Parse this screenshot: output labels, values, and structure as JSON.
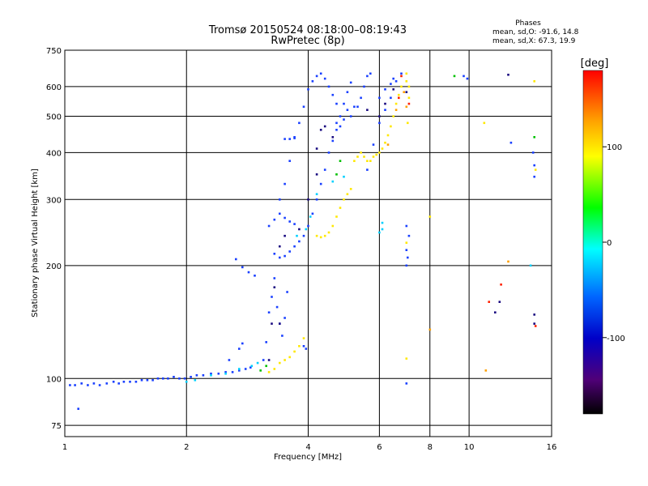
{
  "chart_data": {
    "type": "scatter",
    "title": "Tromsø 20150524 08:18:00–08:19:43",
    "subtitle": "RwPretec (8p)",
    "xlabel": "Frequency [MHz]",
    "ylabel": "Stationary phase Virtual Height [km]",
    "xscale": "log",
    "yscale": "log",
    "xlim": [
      1,
      16
    ],
    "ylim": [
      70,
      750
    ],
    "x_ticks": [
      1,
      2,
      4,
      6,
      8,
      10,
      16
    ],
    "y_ticks": [
      75,
      100,
      200,
      300,
      400,
      500,
      600,
      750
    ],
    "grid": true,
    "phases_info": {
      "title": "Phases",
      "line1": "mean, sd,O: -91.6, 14.8",
      "line2": "mean, sd,X:  67.3, 19.9"
    },
    "colorbar": {
      "label": "[deg]",
      "range": [
        -180,
        180
      ],
      "ticks": [
        100,
        0,
        -100
      ],
      "colors": [
        "#ff0000",
        "#ffa500",
        "#ffff00",
        "#00ff00",
        "#00ffff",
        "#0064ff",
        "#0000c8",
        "#500078",
        "#000000"
      ]
    },
    "series": [
      {
        "color": "#1a40ff",
        "points": [
          [
            1.03,
            96
          ],
          [
            1.06,
            96
          ],
          [
            1.1,
            97
          ],
          [
            1.14,
            96
          ],
          [
            1.18,
            97
          ],
          [
            1.22,
            96
          ],
          [
            1.27,
            97
          ],
          [
            1.32,
            98
          ],
          [
            1.36,
            97
          ],
          [
            1.4,
            98
          ],
          [
            1.45,
            98
          ],
          [
            1.5,
            98
          ],
          [
            1.55,
            99
          ],
          [
            1.6,
            99
          ],
          [
            1.65,
            99
          ],
          [
            1.7,
            100
          ],
          [
            1.75,
            100
          ],
          [
            1.8,
            100
          ],
          [
            1.86,
            101
          ],
          [
            1.92,
            100
          ],
          [
            1.98,
            100
          ],
          [
            2.05,
            101
          ],
          [
            2.12,
            102
          ],
          [
            2.2,
            102
          ],
          [
            2.3,
            103
          ],
          [
            2.4,
            103
          ],
          [
            2.5,
            104
          ],
          [
            2.6,
            104
          ],
          [
            2.7,
            105
          ],
          [
            2.8,
            106
          ],
          [
            2.88,
            107
          ],
          [
            1.08,
            83
          ],
          [
            2.55,
            112
          ],
          [
            2.7,
            120
          ],
          [
            2.75,
            124
          ],
          [
            3.1,
            112
          ],
          [
            3.15,
            125
          ],
          [
            3.2,
            150
          ],
          [
            3.25,
            165
          ],
          [
            3.3,
            185
          ],
          [
            3.35,
            155
          ],
          [
            3.4,
            140
          ],
          [
            3.45,
            130
          ],
          [
            3.5,
            145
          ],
          [
            3.55,
            170
          ],
          [
            3.9,
            122
          ],
          [
            3.95,
            120
          ],
          [
            2.65,
            208
          ],
          [
            2.75,
            198
          ],
          [
            2.85,
            192
          ],
          [
            2.95,
            188
          ],
          [
            3.3,
            215
          ],
          [
            3.4,
            210
          ],
          [
            3.5,
            212
          ],
          [
            3.6,
            218
          ],
          [
            3.7,
            225
          ],
          [
            3.8,
            232
          ],
          [
            3.9,
            240
          ],
          [
            4.0,
            255
          ],
          [
            4.1,
            275
          ],
          [
            4.2,
            300
          ],
          [
            4.3,
            330
          ],
          [
            4.4,
            360
          ],
          [
            4.5,
            400
          ],
          [
            4.6,
            430
          ],
          [
            4.7,
            460
          ],
          [
            4.8,
            500
          ],
          [
            4.9,
            540
          ],
          [
            5.0,
            580
          ],
          [
            5.1,
            615
          ],
          [
            3.2,
            255
          ],
          [
            3.3,
            265
          ],
          [
            3.4,
            275
          ],
          [
            3.5,
            268
          ],
          [
            3.6,
            262
          ],
          [
            3.7,
            258
          ],
          [
            3.4,
            300
          ],
          [
            3.5,
            330
          ],
          [
            3.6,
            380
          ],
          [
            3.7,
            440
          ],
          [
            3.8,
            480
          ],
          [
            3.9,
            530
          ],
          [
            4.0,
            590
          ],
          [
            4.1,
            620
          ],
          [
            4.2,
            640
          ],
          [
            4.3,
            650
          ],
          [
            4.4,
            630
          ],
          [
            4.5,
            600
          ],
          [
            4.6,
            570
          ],
          [
            4.7,
            540
          ],
          [
            3.5,
            435
          ],
          [
            3.6,
            435
          ],
          [
            3.7,
            437
          ],
          [
            4.7,
            480
          ],
          [
            4.8,
            470
          ],
          [
            4.9,
            490
          ],
          [
            5.0,
            520
          ],
          [
            5.1,
            500
          ],
          [
            5.2,
            530
          ],
          [
            5.3,
            530
          ],
          [
            5.4,
            560
          ],
          [
            5.5,
            600
          ],
          [
            5.6,
            640
          ],
          [
            5.7,
            650
          ],
          [
            5.6,
            360
          ],
          [
            5.8,
            420
          ],
          [
            6.0,
            480
          ],
          [
            6.2,
            520
          ],
          [
            6.4,
            560
          ],
          [
            6.6,
            620
          ],
          [
            6.8,
            650
          ],
          [
            6.0,
            560
          ],
          [
            6.2,
            590
          ],
          [
            6.4,
            610
          ],
          [
            6.5,
            630
          ],
          [
            7.0,
            255
          ],
          [
            7.1,
            240
          ],
          [
            7.0,
            220
          ],
          [
            7.05,
            210
          ],
          [
            7.0,
            200
          ],
          [
            7.0,
            97
          ],
          [
            9.7,
            640
          ],
          [
            9.9,
            630
          ],
          [
            12.7,
            425
          ],
          [
            14.4,
            400
          ],
          [
            14.5,
            370
          ],
          [
            14.5,
            345
          ]
        ]
      },
      {
        "color": "#00d0ff",
        "points": [
          [
            2.0,
            98
          ],
          [
            2.1,
            99
          ],
          [
            2.3,
            102
          ],
          [
            2.5,
            103
          ],
          [
            2.7,
            106
          ],
          [
            2.9,
            108
          ],
          [
            3.0,
            110
          ],
          [
            3.75,
            240
          ],
          [
            3.95,
            250
          ],
          [
            4.05,
            270
          ],
          [
            4.2,
            310
          ],
          [
            4.6,
            335
          ],
          [
            4.9,
            345
          ],
          [
            6.1,
            260
          ],
          [
            6.1,
            250
          ],
          [
            6.0,
            245
          ],
          [
            14.2,
            200
          ]
        ]
      },
      {
        "color": "#00c000",
        "points": [
          [
            3.05,
            105
          ],
          [
            3.15,
            108
          ],
          [
            4.7,
            350
          ],
          [
            4.8,
            380
          ],
          [
            9.2,
            640
          ],
          [
            14.5,
            440
          ]
        ]
      },
      {
        "color": "#ffe800",
        "points": [
          [
            3.2,
            104
          ],
          [
            3.3,
            106
          ],
          [
            3.4,
            110
          ],
          [
            3.5,
            112
          ],
          [
            3.6,
            114
          ],
          [
            3.7,
            118
          ],
          [
            3.8,
            122
          ],
          [
            3.9,
            128
          ],
          [
            4.2,
            240
          ],
          [
            4.3,
            238
          ],
          [
            4.4,
            240
          ],
          [
            4.5,
            245
          ],
          [
            4.6,
            255
          ],
          [
            4.7,
            270
          ],
          [
            4.8,
            285
          ],
          [
            4.9,
            300
          ],
          [
            5.0,
            310
          ],
          [
            5.1,
            320
          ],
          [
            5.2,
            380
          ],
          [
            5.3,
            390
          ],
          [
            5.4,
            400
          ],
          [
            5.5,
            390
          ],
          [
            5.6,
            380
          ],
          [
            5.7,
            380
          ],
          [
            5.8,
            390
          ],
          [
            5.9,
            395
          ],
          [
            6.0,
            400
          ],
          [
            6.1,
            410
          ],
          [
            6.2,
            425
          ],
          [
            6.3,
            445
          ],
          [
            6.4,
            470
          ],
          [
            6.5,
            500
          ],
          [
            6.6,
            540
          ],
          [
            6.7,
            570
          ],
          [
            6.8,
            600
          ],
          [
            7.0,
            620
          ],
          [
            7.0,
            650
          ],
          [
            7.1,
            600
          ],
          [
            7.1,
            560
          ],
          [
            7.05,
            480
          ],
          [
            7.0,
            230
          ],
          [
            7.0,
            113
          ],
          [
            8.0,
            270
          ],
          [
            10.9,
            480
          ],
          [
            14.6,
            360
          ],
          [
            14.5,
            620
          ]
        ]
      },
      {
        "color": "#ffa000",
        "points": [
          [
            6.3,
            420
          ],
          [
            6.6,
            520
          ],
          [
            6.9,
            580
          ],
          [
            7.0,
            530
          ],
          [
            8.0,
            135
          ],
          [
            11.0,
            105
          ],
          [
            12.5,
            205
          ]
        ]
      },
      {
        "color": "#ff2000",
        "points": [
          [
            6.8,
            640
          ],
          [
            6.7,
            560
          ],
          [
            7.1,
            540
          ],
          [
            11.2,
            160
          ],
          [
            12.0,
            178
          ],
          [
            14.6,
            138
          ]
        ]
      },
      {
        "color": "#1a0a80",
        "points": [
          [
            3.2,
            112
          ],
          [
            3.25,
            140
          ],
          [
            3.3,
            175
          ],
          [
            3.4,
            140
          ],
          [
            3.4,
            225
          ],
          [
            3.5,
            240
          ],
          [
            3.8,
            250
          ],
          [
            4.0,
            300
          ],
          [
            4.2,
            350
          ],
          [
            4.2,
            410
          ],
          [
            4.3,
            460
          ],
          [
            4.4,
            470
          ],
          [
            4.6,
            440
          ],
          [
            5.6,
            520
          ],
          [
            6.0,
            500
          ],
          [
            6.2,
            540
          ],
          [
            6.5,
            590
          ],
          [
            7.0,
            580
          ],
          [
            12.5,
            645
          ],
          [
            14.5,
            148
          ],
          [
            14.5,
            140
          ],
          [
            11.6,
            150
          ],
          [
            11.9,
            160
          ]
        ]
      }
    ]
  }
}
